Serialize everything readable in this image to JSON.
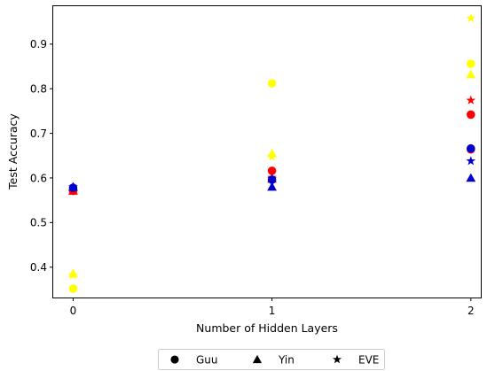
{
  "chart_data": {
    "type": "scatter",
    "xlabel": "Number of Hidden Layers",
    "ylabel": "Test Accuracy",
    "x_ticks": [
      "0",
      "1",
      "2"
    ],
    "y_ticks": [
      "0.4",
      "0.5",
      "0.6",
      "0.7",
      "0.8",
      "0.9"
    ],
    "xlim": [
      -0.1,
      2.05
    ],
    "ylim": [
      0.332,
      0.985
    ],
    "grid": false,
    "legend_placement": "bottom-center, below plot",
    "legend": [
      {
        "label": "Guu",
        "marker": "circle"
      },
      {
        "label": "Yin",
        "marker": "triangle"
      },
      {
        "label": "EVE",
        "marker": "star"
      }
    ],
    "colors": {
      "red": "#ff0000",
      "blue": "#0000cc",
      "yellow": "#ffff00"
    },
    "points": [
      {
        "x": 0,
        "y": 0.571,
        "marker": "circle",
        "color": "red"
      },
      {
        "x": 0,
        "y": 0.571,
        "marker": "triangle",
        "color": "red"
      },
      {
        "x": 0,
        "y": 0.571,
        "marker": "star",
        "color": "red"
      },
      {
        "x": 0,
        "y": 0.578,
        "marker": "circle",
        "color": "blue"
      },
      {
        "x": 0,
        "y": 0.58,
        "marker": "triangle",
        "color": "blue"
      },
      {
        "x": 0,
        "y": 0.58,
        "marker": "star",
        "color": "blue"
      },
      {
        "x": 0,
        "y": 0.352,
        "marker": "circle",
        "color": "yellow"
      },
      {
        "x": 0,
        "y": 0.386,
        "marker": "triangle",
        "color": "yellow"
      },
      {
        "x": 0,
        "y": 0.382,
        "marker": "star",
        "color": "yellow"
      },
      {
        "x": 1,
        "y": 0.616,
        "marker": "circle",
        "color": "red"
      },
      {
        "x": 1,
        "y": 0.598,
        "marker": "triangle",
        "color": "red"
      },
      {
        "x": 1,
        "y": 0.601,
        "marker": "star",
        "color": "red"
      },
      {
        "x": 1,
        "y": 0.596,
        "marker": "circle",
        "color": "blue"
      },
      {
        "x": 1,
        "y": 0.58,
        "marker": "triangle",
        "color": "blue"
      },
      {
        "x": 1,
        "y": 0.598,
        "marker": "star",
        "color": "blue"
      },
      {
        "x": 1,
        "y": 0.812,
        "marker": "circle",
        "color": "yellow"
      },
      {
        "x": 1,
        "y": 0.655,
        "marker": "triangle",
        "color": "yellow"
      },
      {
        "x": 1,
        "y": 0.648,
        "marker": "star",
        "color": "yellow"
      },
      {
        "x": 2,
        "y": 0.742,
        "marker": "circle",
        "color": "red"
      },
      {
        "x": 2,
        "y": 0.664,
        "marker": "circle",
        "color": "red"
      },
      {
        "x": 2,
        "y": 0.774,
        "marker": "star",
        "color": "red"
      },
      {
        "x": 2,
        "y": 0.666,
        "marker": "circle",
        "color": "blue"
      },
      {
        "x": 2,
        "y": 0.6,
        "marker": "triangle",
        "color": "blue"
      },
      {
        "x": 2,
        "y": 0.638,
        "marker": "star",
        "color": "blue"
      },
      {
        "x": 2,
        "y": 0.856,
        "marker": "circle",
        "color": "yellow"
      },
      {
        "x": 2,
        "y": 0.832,
        "marker": "triangle",
        "color": "yellow"
      },
      {
        "x": 2,
        "y": 0.958,
        "marker": "star",
        "color": "yellow"
      }
    ]
  }
}
